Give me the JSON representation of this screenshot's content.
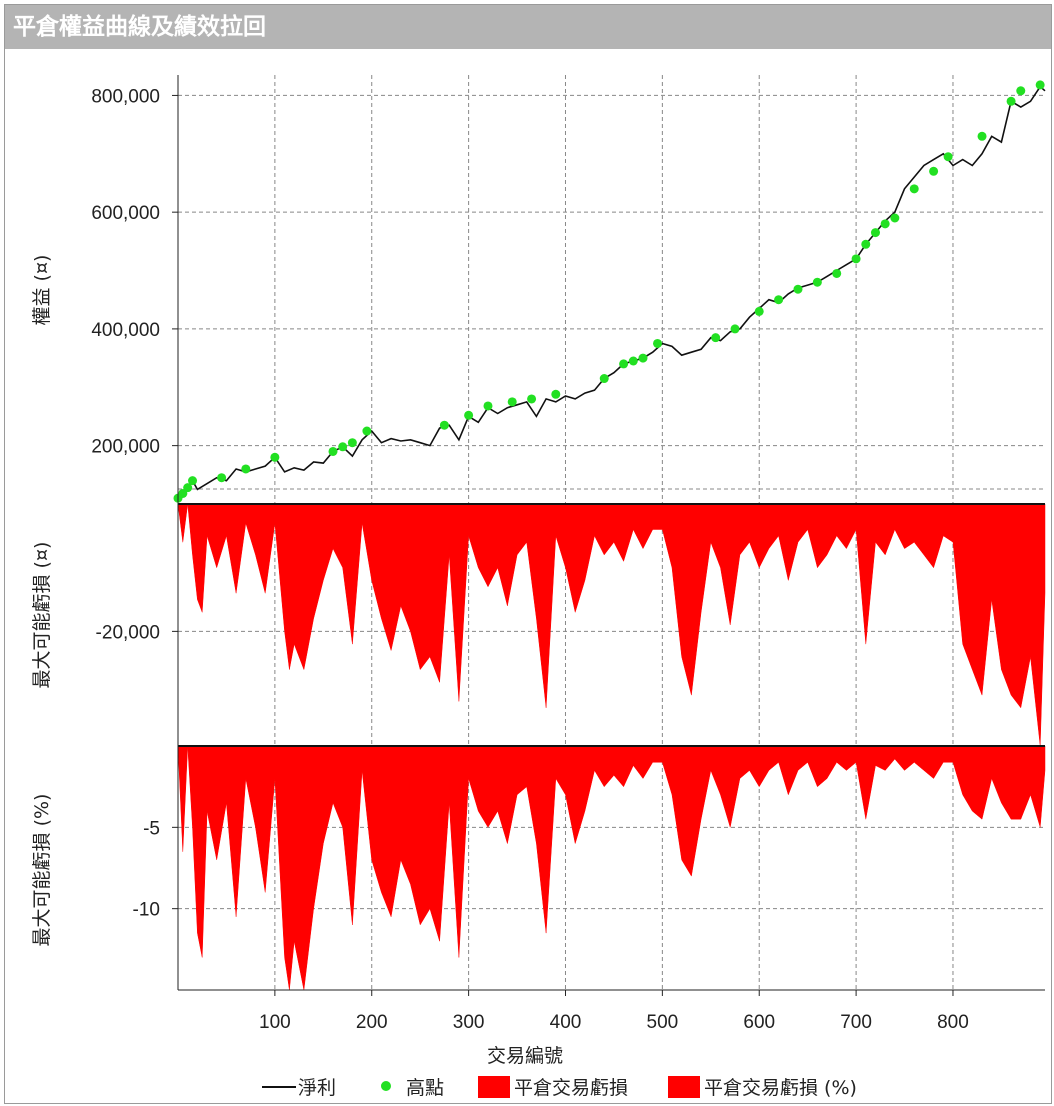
{
  "window": {
    "title": "平倉權益曲線及績效拉回"
  },
  "colors": {
    "net_profit": "#111111",
    "high_point": "#22e022",
    "drawdown": "#ff0000",
    "grid": "#888888"
  },
  "chart_data": [
    {
      "type": "line",
      "panel": "equity",
      "ylabel": "權益 (¤)",
      "xlabel": "交易編號",
      "xlim": [
        0,
        895
      ],
      "ylim": [
        100000,
        835000
      ],
      "yticks": [
        200000,
        400000,
        600000,
        800000
      ],
      "ytick_labels": [
        "200,000",
        "400,000",
        "600,000",
        "800,000"
      ],
      "xticks": [
        100,
        200,
        300,
        400,
        500,
        600,
        700,
        800
      ],
      "xtick_labels": [
        "100",
        "200",
        "300",
        "400",
        "500",
        "600",
        "700",
        "800"
      ],
      "series": [
        {
          "name": "淨利",
          "x": [
            0,
            10,
            15,
            20,
            30,
            40,
            50,
            60,
            70,
            80,
            90,
            100,
            110,
            120,
            130,
            140,
            150,
            160,
            170,
            180,
            190,
            200,
            210,
            220,
            230,
            240,
            250,
            260,
            270,
            280,
            290,
            300,
            310,
            320,
            330,
            340,
            350,
            360,
            370,
            380,
            390,
            400,
            410,
            420,
            430,
            440,
            450,
            460,
            470,
            480,
            490,
            500,
            510,
            520,
            530,
            540,
            550,
            560,
            570,
            580,
            590,
            600,
            610,
            620,
            630,
            640,
            650,
            660,
            670,
            680,
            690,
            700,
            710,
            720,
            730,
            740,
            750,
            760,
            770,
            780,
            790,
            800,
            810,
            820,
            830,
            840,
            850,
            860,
            870,
            880,
            890,
            895
          ],
          "y": [
            110000,
            125000,
            140000,
            125000,
            135000,
            145000,
            140000,
            160000,
            155000,
            160000,
            165000,
            180000,
            155000,
            162000,
            158000,
            172000,
            170000,
            190000,
            198000,
            182000,
            210000,
            225000,
            205000,
            212000,
            208000,
            210000,
            205000,
            200000,
            230000,
            235000,
            210000,
            250000,
            240000,
            265000,
            255000,
            265000,
            270000,
            275000,
            250000,
            280000,
            275000,
            285000,
            280000,
            290000,
            295000,
            315000,
            325000,
            340000,
            345000,
            350000,
            360000,
            375000,
            370000,
            355000,
            360000,
            365000,
            385000,
            380000,
            395000,
            400000,
            420000,
            435000,
            450000,
            445000,
            460000,
            470000,
            475000,
            480000,
            490000,
            500000,
            510000,
            520000,
            545000,
            565000,
            585000,
            600000,
            640000,
            660000,
            680000,
            690000,
            700000,
            680000,
            690000,
            680000,
            700000,
            730000,
            720000,
            790000,
            780000,
            790000,
            815000,
            808000
          ]
        },
        {
          "name": "高點",
          "x": [
            0,
            5,
            10,
            15,
            45,
            70,
            100,
            160,
            170,
            180,
            195,
            275,
            300,
            320,
            345,
            365,
            390,
            440,
            460,
            470,
            480,
            495,
            555,
            575,
            600,
            620,
            640,
            660,
            680,
            700,
            710,
            720,
            730,
            740,
            760,
            780,
            795,
            830,
            860,
            870,
            890
          ],
          "y": [
            110000,
            118000,
            128000,
            140000,
            145000,
            160000,
            180000,
            190000,
            198000,
            205000,
            225000,
            235000,
            252000,
            268000,
            275000,
            280000,
            288000,
            315000,
            340000,
            345000,
            350000,
            375000,
            385000,
            400000,
            430000,
            450000,
            468000,
            480000,
            495000,
            520000,
            545000,
            565000,
            580000,
            590000,
            640000,
            670000,
            695000,
            730000,
            790000,
            808000,
            818000
          ]
        }
      ]
    },
    {
      "type": "area",
      "panel": "drawdown_abs",
      "ylabel": "最大可能虧損 (¤)",
      "ylim": [
        -38000,
        0
      ],
      "yticks": [
        -20000
      ],
      "ytick_labels": [
        "-20,000"
      ],
      "series": [
        {
          "name": "平倉交易虧損",
          "x": [
            0,
            5,
            10,
            15,
            20,
            25,
            30,
            40,
            50,
            60,
            70,
            80,
            90,
            100,
            110,
            115,
            120,
            130,
            140,
            150,
            160,
            170,
            180,
            190,
            200,
            210,
            220,
            230,
            240,
            250,
            260,
            270,
            280,
            290,
            300,
            310,
            320,
            330,
            340,
            350,
            360,
            370,
            380,
            390,
            400,
            410,
            420,
            430,
            440,
            450,
            460,
            470,
            480,
            490,
            500,
            510,
            520,
            530,
            540,
            550,
            560,
            570,
            580,
            590,
            600,
            610,
            620,
            630,
            640,
            650,
            660,
            670,
            680,
            690,
            700,
            710,
            720,
            730,
            740,
            750,
            760,
            770,
            780,
            790,
            800,
            810,
            820,
            830,
            840,
            850,
            860,
            870,
            880,
            890,
            895
          ],
          "y": [
            0,
            -6000,
            0,
            -8000,
            -15000,
            -17000,
            -5000,
            -10000,
            -5000,
            -14000,
            -3000,
            -8000,
            -14000,
            -3000,
            -20000,
            -26000,
            -22000,
            -26000,
            -18000,
            -12000,
            -7000,
            -10000,
            -22000,
            -3000,
            -12000,
            -18000,
            -23000,
            -16000,
            -20000,
            -26000,
            -24000,
            -28000,
            -8000,
            -31000,
            -5000,
            -10000,
            -13000,
            -10000,
            -16000,
            -8000,
            -6000,
            -18000,
            -32000,
            -5000,
            -10000,
            -17000,
            -12000,
            -5000,
            -8000,
            -6000,
            -9000,
            -4000,
            -7000,
            -4000,
            -4000,
            -10000,
            -24000,
            -30000,
            -17000,
            -6000,
            -10000,
            -19000,
            -8000,
            -6000,
            -10000,
            -7000,
            -5000,
            -12000,
            -6000,
            -4000,
            -10000,
            -8000,
            -5000,
            -7000,
            -4000,
            -22000,
            -6000,
            -8000,
            -4000,
            -7000,
            -6000,
            -8000,
            -10000,
            -5000,
            -6000,
            -22000,
            -26000,
            -30000,
            -15000,
            -26000,
            -30000,
            -32000,
            -24000,
            -38000,
            -14000
          ]
        },
        {
          "name": "平倉交易虧損 (%)",
          "x": [],
          "y": []
        }
      ]
    },
    {
      "type": "area",
      "panel": "drawdown_pct",
      "ylabel": "最大可能虧損 (%)",
      "ylim": [
        -15,
        0
      ],
      "yticks": [
        -5,
        -10
      ],
      "ytick_labels": [
        "-5",
        "-10"
      ],
      "series": [
        {
          "name": "平倉交易虧損 (%)",
          "x": [
            0,
            5,
            10,
            15,
            20,
            25,
            30,
            40,
            50,
            60,
            70,
            80,
            90,
            100,
            110,
            115,
            120,
            130,
            140,
            150,
            160,
            170,
            180,
            190,
            200,
            210,
            220,
            230,
            240,
            250,
            260,
            270,
            280,
            290,
            300,
            310,
            320,
            330,
            340,
            350,
            360,
            370,
            380,
            390,
            400,
            410,
            420,
            430,
            440,
            450,
            460,
            470,
            480,
            490,
            500,
            510,
            520,
            530,
            540,
            550,
            560,
            570,
            580,
            590,
            600,
            610,
            620,
            630,
            640,
            650,
            660,
            670,
            680,
            690,
            700,
            710,
            720,
            730,
            740,
            750,
            760,
            770,
            780,
            790,
            800,
            810,
            820,
            830,
            840,
            850,
            860,
            870,
            880,
            890,
            895
          ],
          "y": [
            0,
            -6.5,
            0,
            -5,
            -11.5,
            -13,
            -4,
            -7,
            -3.5,
            -10.5,
            -2,
            -5,
            -9,
            -2,
            -13,
            -15,
            -12,
            -15,
            -10,
            -6,
            -3.5,
            -5,
            -11,
            -1.5,
            -7,
            -9,
            -10.5,
            -7,
            -8.5,
            -11,
            -10,
            -12,
            -3.5,
            -13,
            -2,
            -4,
            -5,
            -4,
            -6,
            -3,
            -2.5,
            -6,
            -11.5,
            -2,
            -3,
            -6,
            -4,
            -1.5,
            -2.5,
            -1.8,
            -2.5,
            -1.2,
            -2,
            -1,
            -1,
            -3,
            -7,
            -8,
            -4.5,
            -1.5,
            -3,
            -5,
            -2,
            -1.5,
            -2.5,
            -1.5,
            -1,
            -3,
            -1.5,
            -1,
            -2.5,
            -2,
            -1,
            -1.5,
            -1,
            -4.5,
            -1.2,
            -1.5,
            -0.8,
            -1.5,
            -1,
            -1.5,
            -2,
            -1,
            -1,
            -3,
            -4,
            -4.5,
            -2,
            -3.5,
            -4.5,
            -4.5,
            -3,
            -5,
            -1.5
          ]
        }
      ]
    }
  ],
  "legend": {
    "items": [
      {
        "label": "淨利",
        "kind": "line"
      },
      {
        "label": "高點",
        "kind": "dot"
      },
      {
        "label": "平倉交易虧損",
        "kind": "box"
      },
      {
        "label": "平倉交易虧損 (%)",
        "kind": "box"
      }
    ]
  }
}
